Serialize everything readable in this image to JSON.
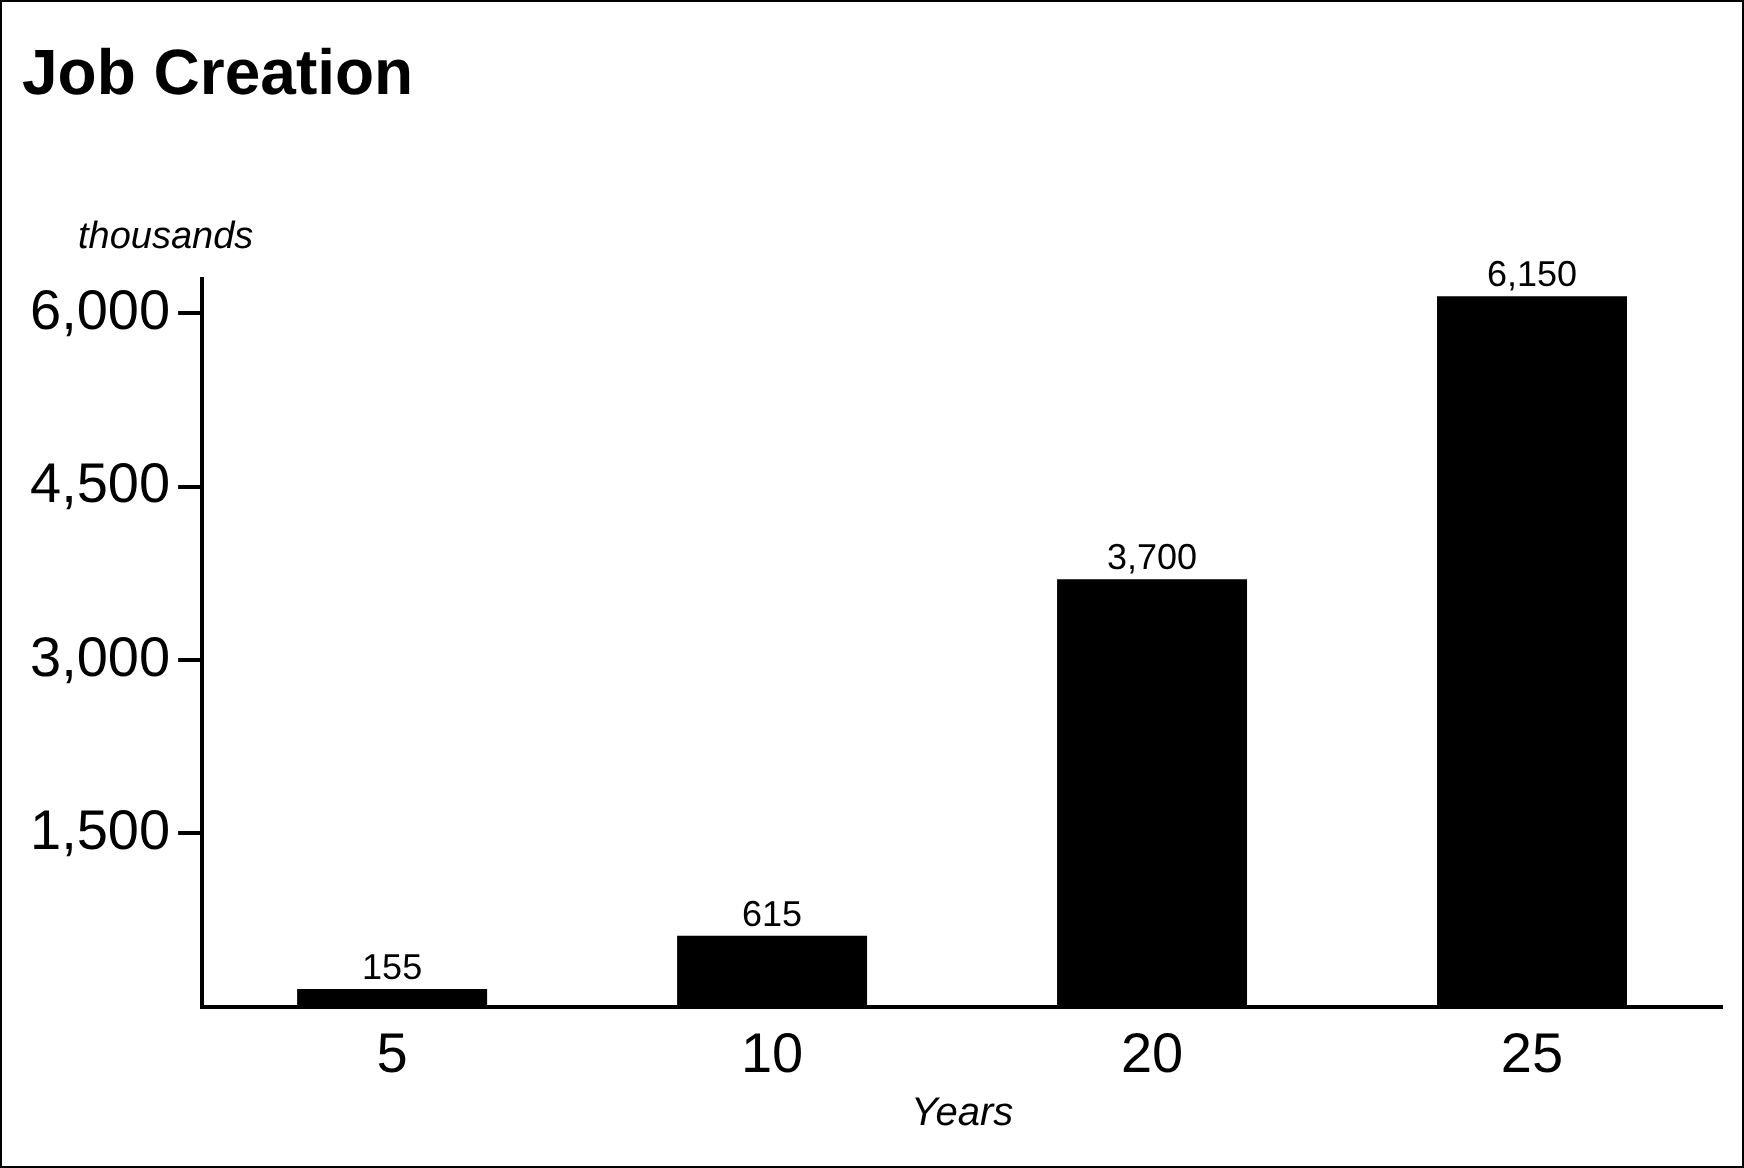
{
  "chart_data": {
    "type": "bar",
    "title": "Job Creation",
    "ylabel": "thousands",
    "xlabel": "Years",
    "categories": [
      "5",
      "10",
      "20",
      "25"
    ],
    "values": [
      155,
      615,
      3700,
      6150
    ],
    "color": "#000000",
    "value_labels": [
      "155",
      "615",
      "3,700",
      "6,150"
    ],
    "ylim": [
      0,
      6300
    ],
    "yticks": [
      {
        "value": 1500,
        "label": "1,500"
      },
      {
        "value": 3000,
        "label": "3,000"
      },
      {
        "value": 4500,
        "label": "4,500"
      },
      {
        "value": 6000,
        "label": "6,000"
      }
    ],
    "grid": false,
    "legend": false
  }
}
